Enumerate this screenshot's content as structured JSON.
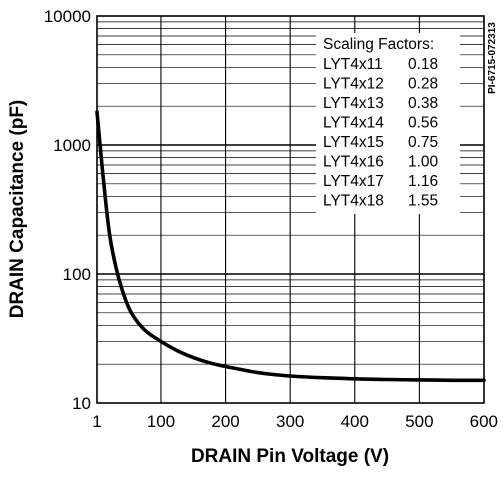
{
  "chart_data": {
    "type": "line",
    "xlabel": "DRAIN Pin Voltage (V)",
    "ylabel": "DRAIN Capacitance (pF)",
    "figure_id": "PI-6715-072313",
    "xlim": [
      1,
      600
    ],
    "ylim": [
      10,
      10000
    ],
    "yscale": "log",
    "grid": true,
    "x_ticks": [
      1,
      100,
      200,
      300,
      400,
      500,
      600
    ],
    "x_tick_labels": [
      "1",
      "100",
      "200",
      "300",
      "400",
      "500",
      "600"
    ],
    "y_ticks": [
      10,
      100,
      1000,
      10000
    ],
    "y_tick_labels": [
      "10",
      "100",
      "1000",
      "10000"
    ],
    "series": [
      {
        "x": [
          1,
          10,
          20,
          30,
          40,
          50,
          60,
          70,
          80,
          100,
          125,
          150,
          175,
          200,
          250,
          300,
          350,
          400,
          450,
          500,
          550,
          600
        ],
        "y": [
          1800,
          600,
          210,
          115,
          75,
          55,
          45,
          39,
          35,
          30,
          25.5,
          22.5,
          20.5,
          19.2,
          17.2,
          16.2,
          15.7,
          15.4,
          15.2,
          15.1,
          15.0,
          15.0
        ]
      }
    ],
    "legend": {
      "placement": "top-right",
      "title": "Scaling Factors:",
      "entries": [
        {
          "name": "LYT4x11",
          "value": "0.18"
        },
        {
          "name": "LYT4x12",
          "value": "0.28"
        },
        {
          "name": "LYT4x13",
          "value": "0.38"
        },
        {
          "name": "LYT4x14",
          "value": "0.56"
        },
        {
          "name": "LYT4x15",
          "value": "0.75"
        },
        {
          "name": "LYT4x16",
          "value": "1.00"
        },
        {
          "name": "LYT4x17",
          "value": "1.16"
        },
        {
          "name": "LYT4x18",
          "value": "1.55"
        }
      ]
    },
    "colors": {
      "curve": "#000000",
      "grid": "#000000",
      "background": "#ffffff"
    }
  }
}
